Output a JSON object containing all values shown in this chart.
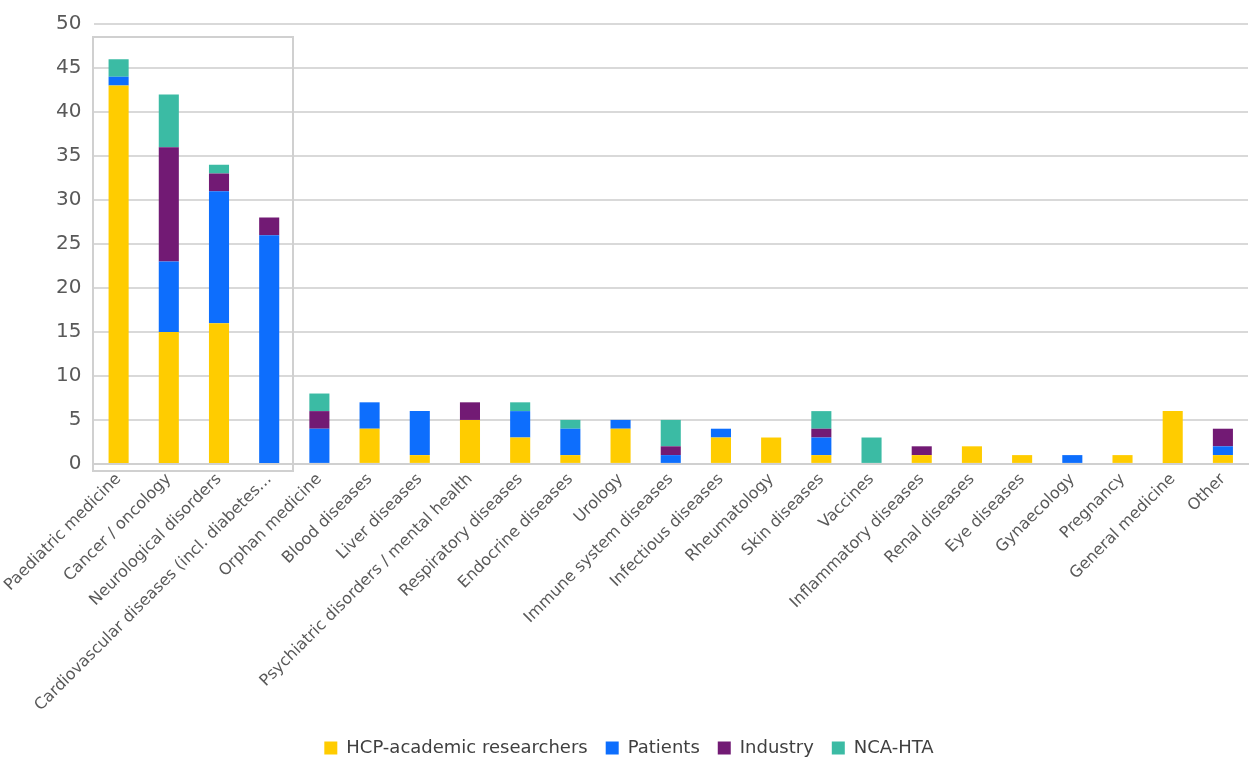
{
  "chart_data": {
    "type": "bar",
    "stacked": true,
    "categories": [
      "Paediatric medicine",
      "Cancer / oncology",
      "Neurological disorders",
      "Cardiovascular diseases (incl. diabetes…",
      "Orphan medicine",
      "Blood diseases",
      "Liver diseases",
      "Psychiatric disorders / mental health",
      "Respiratory diseases",
      "Endocrine diseases",
      "Urology",
      "Immune system diseases",
      "Infectious diseases",
      "Rheumatology",
      "Skin diseases",
      "Vaccines",
      "Inflammatory diseases",
      "Renal diseases",
      "Eye diseases",
      "Gynaecology",
      "Pregnancy",
      "General medicine",
      "Other"
    ],
    "series": [
      {
        "name": "HCP-academic researchers",
        "color": "#ffcc00",
        "values": [
          43,
          15,
          16,
          0,
          0,
          4,
          1,
          5,
          3,
          1,
          4,
          0,
          3,
          3,
          1,
          0,
          1,
          2,
          1,
          0,
          1,
          6,
          1
        ]
      },
      {
        "name": "Patients",
        "color": "#0d6efd",
        "values": [
          1,
          8,
          15,
          26,
          4,
          3,
          5,
          0,
          3,
          3,
          1,
          1,
          1,
          0,
          2,
          0,
          0,
          0,
          0,
          1,
          0,
          0,
          1
        ]
      },
      {
        "name": "Industry",
        "color": "#721a74",
        "values": [
          0,
          13,
          2,
          2,
          2,
          0,
          0,
          2,
          0,
          0,
          0,
          1,
          0,
          0,
          1,
          0,
          1,
          0,
          0,
          0,
          0,
          0,
          2
        ]
      },
      {
        "name": "NCA-HTA",
        "color": "#3bbba4",
        "values": [
          2,
          6,
          1,
          0,
          2,
          0,
          0,
          0,
          1,
          1,
          0,
          3,
          0,
          0,
          2,
          3,
          0,
          0,
          0,
          0,
          0,
          0,
          0
        ]
      }
    ],
    "ylim": [
      0,
      50
    ],
    "yticks": [
      0,
      5,
      10,
      15,
      20,
      25,
      30,
      35,
      40,
      45,
      50
    ],
    "grid": "y",
    "legend": "bottom"
  }
}
